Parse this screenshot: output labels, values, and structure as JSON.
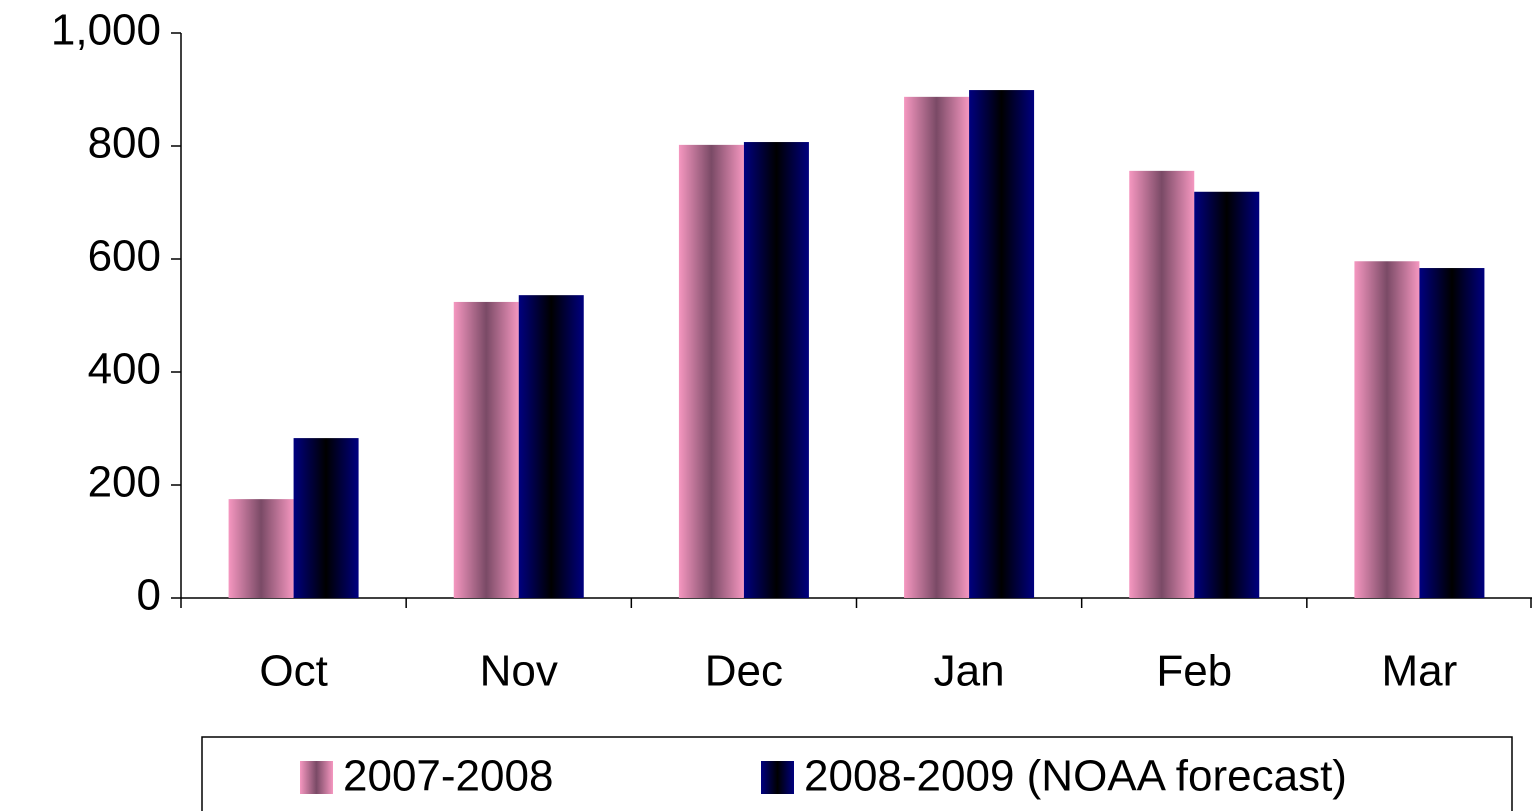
{
  "chart_data": {
    "type": "bar",
    "categories": [
      "Oct",
      "Nov",
      "Dec",
      "Jan",
      "Feb",
      "Mar"
    ],
    "series": [
      {
        "name": "2007-2008",
        "color": "#f597c0",
        "values": [
          175,
          524,
          802,
          887,
          756,
          596
        ]
      },
      {
        "name": "2008-2009 (NOAA forecast)",
        "color": "#000080",
        "values": [
          283,
          536,
          807,
          899,
          719,
          584
        ]
      }
    ],
    "ylim": [
      0,
      1000
    ],
    "yticks": [
      0,
      200,
      400,
      600,
      800,
      {
        "value": 1000,
        "label": "1,000"
      }
    ],
    "grid": false,
    "legend": "bottom"
  }
}
